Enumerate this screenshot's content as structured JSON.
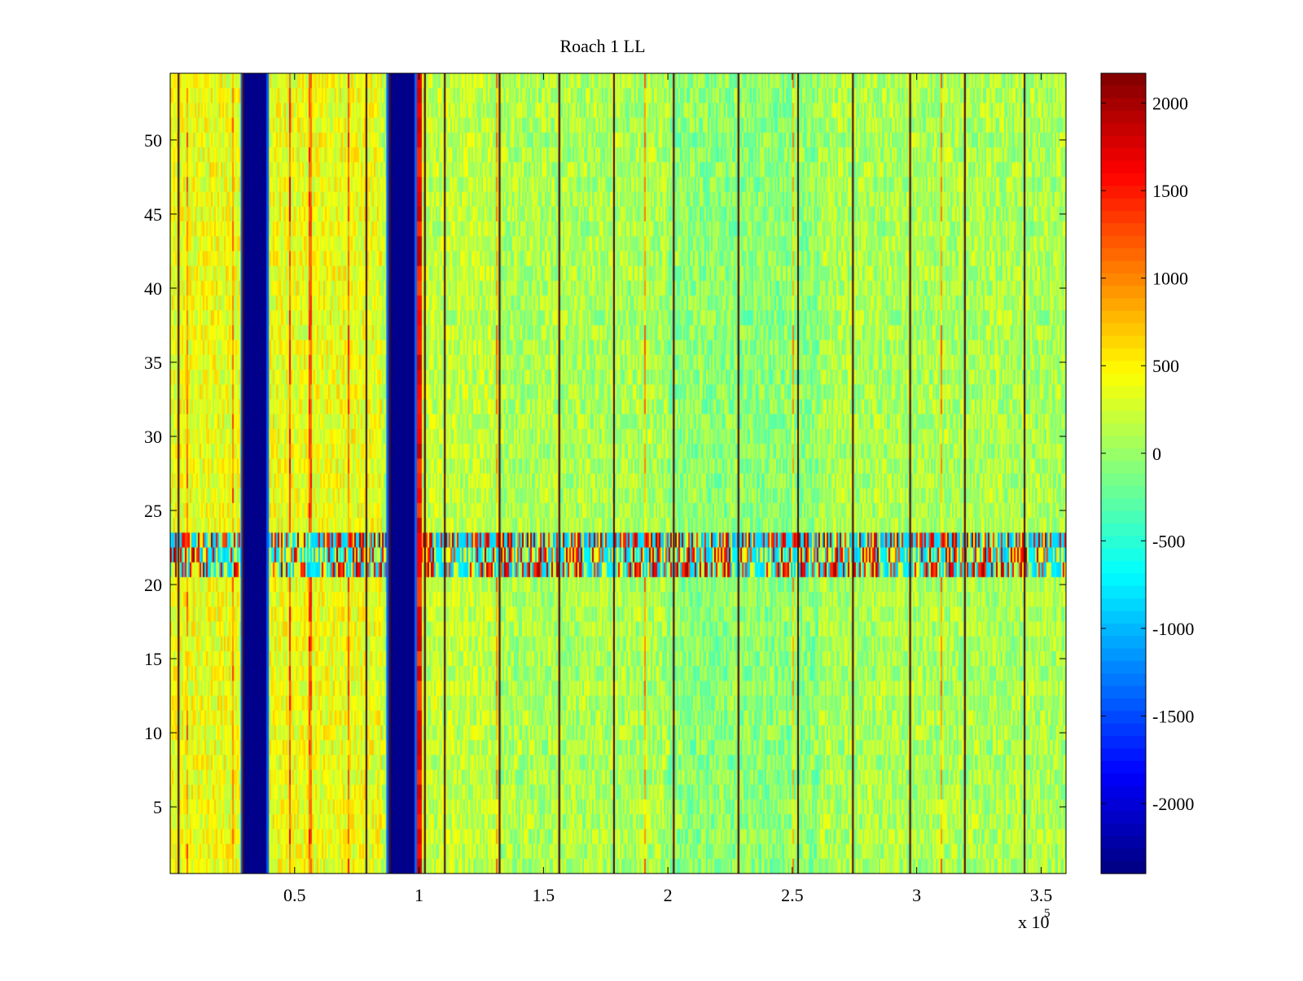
{
  "chart_data": {
    "type": "heatmap",
    "title": "Roach 1 LL",
    "xlabel": "",
    "ylabel": "",
    "x_exponent_label": "x 10",
    "x_exponent_power": "5",
    "xlim": [
      0,
      3.6
    ],
    "ylim": [
      0.5,
      54.5
    ],
    "x_ticks": [
      0.5,
      1,
      1.5,
      2,
      2.5,
      3,
      3.5
    ],
    "x_tick_labels": [
      "0.5",
      "1",
      "1.5",
      "2",
      "2.5",
      "3",
      "3.5"
    ],
    "y_ticks": [
      5,
      10,
      15,
      20,
      25,
      30,
      35,
      40,
      45,
      50
    ],
    "y_tick_labels": [
      "5",
      "10",
      "15",
      "20",
      "25",
      "30",
      "35",
      "40",
      "45",
      "50"
    ],
    "rows": 54,
    "background_value_range": [
      -400,
      600
    ],
    "blue_bands_x": [
      [
        0.29,
        0.39
      ],
      [
        0.875,
        0.985
      ]
    ],
    "blue_band_value": -2350,
    "thin_line_x": [
      0.03,
      0.29,
      0.785,
      0.88,
      1.02,
      1.1,
      1.32,
      1.56,
      1.78,
      2.02,
      2.28,
      2.52,
      2.74,
      2.97,
      3.19,
      3.43
    ],
    "stripe_rows": [
      21,
      23
    ],
    "colorbar": {
      "min": -2400,
      "max": 2170,
      "ticks": [
        2000,
        1500,
        1000,
        500,
        0,
        -500,
        -1000,
        -1500,
        -2000
      ],
      "tick_labels": [
        "2000",
        "1500",
        "1000",
        "500",
        "0",
        "-500",
        "-1000",
        "-1500",
        "-2000"
      ]
    },
    "grid": false,
    "colormap": "jet"
  }
}
